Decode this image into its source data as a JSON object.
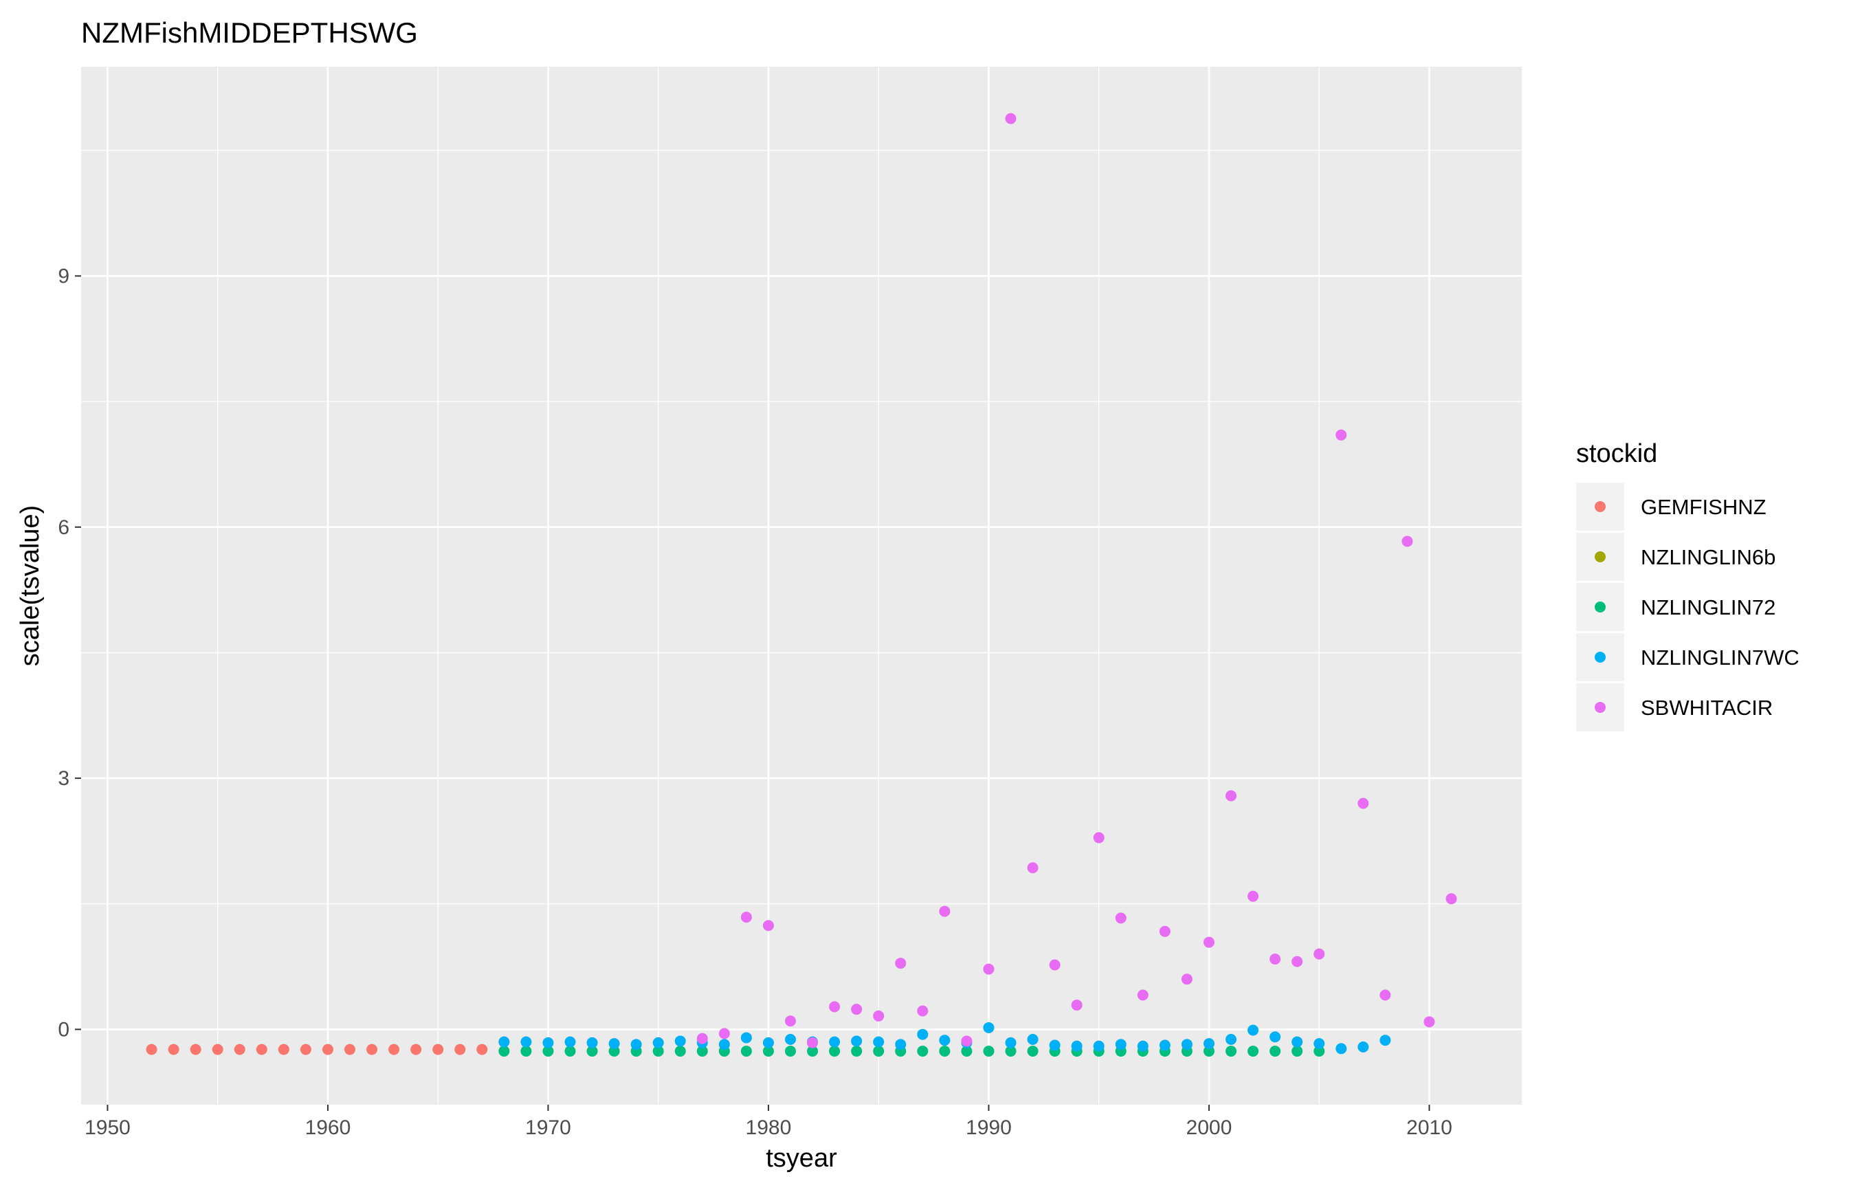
{
  "chart_data": {
    "type": "scatter",
    "title": "NZMFishMIDDEPTHSWG",
    "xlabel": "tsyear",
    "ylabel": "scale(tsvalue)",
    "xlim": [
      1948.8,
      2014.2
    ],
    "ylim": [
      -0.9,
      11.5
    ],
    "x_ticks": [
      1950,
      1960,
      1970,
      1980,
      1990,
      2000,
      2010
    ],
    "x_tick_labels": [
      "1950",
      "1960",
      "1970",
      "1980",
      "1990",
      "2000",
      "2010"
    ],
    "y_ticks": [
      0,
      3,
      6,
      9
    ],
    "y_tick_labels": [
      "0",
      "3",
      "6",
      "9"
    ],
    "grid": true,
    "legend_position": "right",
    "legend_title": "stockid",
    "series": [
      {
        "name": "GEMFISHNZ",
        "color": "#F8766D",
        "x": [
          1952,
          1953,
          1954,
          1955,
          1956,
          1957,
          1958,
          1959,
          1960,
          1961,
          1962,
          1963,
          1964,
          1965,
          1966,
          1967
        ],
        "y": [
          -0.24,
          -0.24,
          -0.24,
          -0.24,
          -0.24,
          -0.24,
          -0.24,
          -0.24,
          -0.24,
          -0.24,
          -0.24,
          -0.24,
          -0.24,
          -0.24,
          -0.24,
          -0.24
        ]
      },
      {
        "name": "NZLINGLIN6b",
        "color": "#A3A500",
        "x": [],
        "y": []
      },
      {
        "name": "NZLINGLIN72",
        "color": "#00BF7D",
        "x": [
          1968,
          1969,
          1970,
          1971,
          1972,
          1973,
          1974,
          1975,
          1976,
          1977,
          1978,
          1979,
          1980,
          1981,
          1982,
          1983,
          1984,
          1985,
          1986,
          1987,
          1988,
          1989,
          1990,
          1991,
          1992,
          1993,
          1994,
          1995,
          1996,
          1997,
          1998,
          1999,
          2000,
          2001,
          2002,
          2003,
          2004,
          2005
        ],
        "y": [
          -0.26,
          -0.26,
          -0.26,
          -0.26,
          -0.26,
          -0.26,
          -0.26,
          -0.26,
          -0.26,
          -0.26,
          -0.26,
          -0.26,
          -0.26,
          -0.26,
          -0.26,
          -0.26,
          -0.26,
          -0.26,
          -0.26,
          -0.26,
          -0.26,
          -0.26,
          -0.26,
          -0.26,
          -0.26,
          -0.26,
          -0.26,
          -0.26,
          -0.26,
          -0.26,
          -0.26,
          -0.26,
          -0.26,
          -0.26,
          -0.26,
          -0.26,
          -0.26,
          -0.26
        ]
      },
      {
        "name": "NZLINGLIN7WC",
        "color": "#00B0F6",
        "x": [
          1968,
          1969,
          1970,
          1971,
          1972,
          1973,
          1974,
          1975,
          1976,
          1977,
          1978,
          1979,
          1980,
          1981,
          1982,
          1983,
          1984,
          1985,
          1986,
          1987,
          1988,
          1989,
          1990,
          1991,
          1992,
          1993,
          1994,
          1995,
          1996,
          1997,
          1998,
          1999,
          2000,
          2001,
          2002,
          2003,
          2004,
          2005,
          2006,
          2007,
          2008
        ],
        "y": [
          -0.15,
          -0.15,
          -0.16,
          -0.15,
          -0.16,
          -0.17,
          -0.18,
          -0.16,
          -0.14,
          -0.16,
          -0.18,
          -0.1,
          -0.16,
          -0.12,
          -0.15,
          -0.15,
          -0.14,
          -0.15,
          -0.18,
          -0.06,
          -0.13,
          -0.16,
          0.02,
          -0.16,
          -0.12,
          -0.19,
          -0.2,
          -0.2,
          -0.18,
          -0.2,
          -0.19,
          -0.18,
          -0.17,
          -0.12,
          -0.01,
          -0.09,
          -0.15,
          -0.17,
          -0.23,
          -0.21,
          -0.13
        ]
      },
      {
        "name": "SBWHITACIR",
        "color": "#E76BF3",
        "x": [
          1977,
          1978,
          1979,
          1980,
          1981,
          1982,
          1983,
          1984,
          1985,
          1986,
          1987,
          1988,
          1989,
          1990,
          1991,
          1992,
          1993,
          1994,
          1995,
          1996,
          1997,
          1998,
          1999,
          2000,
          2001,
          2002,
          2003,
          2004,
          2005,
          2006,
          2007,
          2008,
          2009,
          2010,
          2011
        ],
        "y": [
          -0.11,
          -0.05,
          1.34,
          1.24,
          0.1,
          -0.16,
          0.27,
          0.24,
          0.16,
          0.79,
          0.22,
          1.41,
          -0.14,
          0.72,
          10.88,
          1.93,
          0.77,
          0.29,
          2.29,
          1.33,
          0.41,
          1.17,
          0.6,
          1.04,
          2.79,
          1.59,
          0.84,
          0.81,
          0.9,
          7.1,
          2.7,
          0.41,
          5.83,
          0.09,
          1.56
        ]
      }
    ]
  }
}
